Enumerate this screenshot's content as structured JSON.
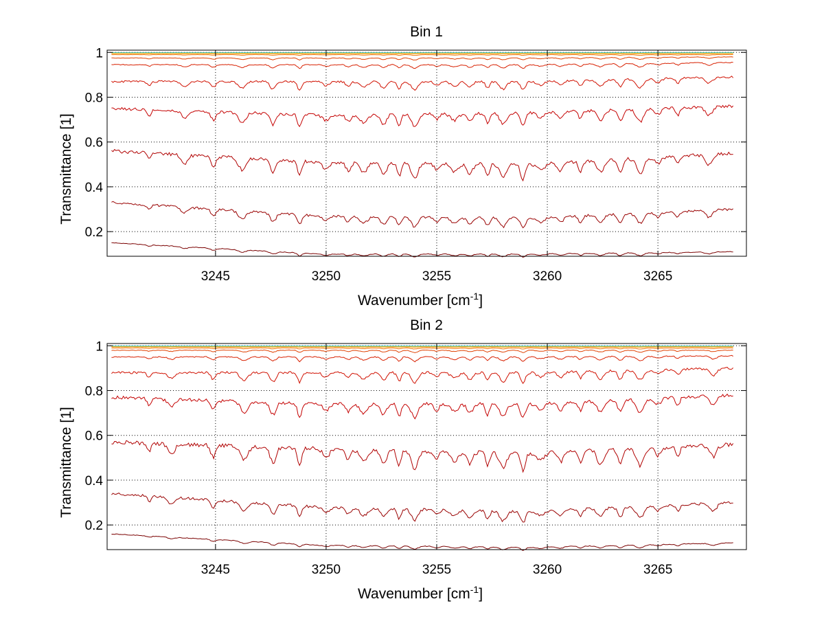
{
  "chart_data": [
    {
      "type": "line",
      "title": "Bin 1",
      "xlabel": "Wavenumber [cm",
      "xlabel_sup": "-1",
      "xlabel_end": "]",
      "ylabel": "Transmittance [1]",
      "xlim": [
        3240.1,
        3269.0
      ],
      "ylim": [
        0.09,
        1.01
      ],
      "xticks": [
        "3245",
        "3250",
        "3255",
        "3260",
        "3265"
      ],
      "yticks": [
        "0.2",
        "0.4",
        "0.6",
        "0.8",
        "1"
      ],
      "grid": true,
      "x_range": [
        3240.3,
        3268.4
      ],
      "series_colors": [
        "#7a0000",
        "#990000",
        "#b00000",
        "#c40000",
        "#d01000",
        "#d82000",
        "#e04000",
        "#ee7000",
        "#ff9900",
        "#ffcc00",
        "#30c0c0"
      ],
      "series": [
        {
          "baseline": [
            0.15,
            0.1,
            0.1,
            0.11
          ],
          "depth": 0.012
        },
        {
          "baseline": [
            0.33,
            0.27,
            0.26,
            0.3
          ],
          "depth": 0.04
        },
        {
          "baseline": [
            0.56,
            0.51,
            0.5,
            0.55
          ],
          "depth": 0.06
        },
        {
          "baseline": [
            0.75,
            0.72,
            0.73,
            0.76
          ],
          "depth": 0.05
        },
        {
          "baseline": [
            0.87,
            0.87,
            0.87,
            0.89
          ],
          "depth": 0.035
        },
        {
          "baseline": [
            0.945,
            0.945,
            0.945,
            0.955
          ],
          "depth": 0.015
        },
        {
          "baseline": [
            0.975,
            0.975,
            0.975,
            0.98
          ],
          "depth": 0.008
        },
        {
          "baseline": [
            0.99,
            0.99,
            0.99,
            0.99
          ],
          "depth": 0.003
        },
        {
          "baseline": [
            0.995,
            0.995,
            0.995,
            0.995
          ],
          "depth": 0.001
        },
        {
          "baseline": [
            0.998,
            0.998,
            0.998,
            0.998
          ],
          "depth": 0.0005
        },
        {
          "baseline": [
            0.999,
            0.999,
            0.999,
            0.999
          ],
          "depth": 0.0002
        }
      ],
      "absorption_lines": [
        3242.0,
        3243.6,
        3244.9,
        3246.2,
        3247.6,
        3248.8,
        3250.0,
        3251.0,
        3251.7,
        3252.6,
        3253.3,
        3254.0,
        3255.0,
        3255.8,
        3256.5,
        3257.3,
        3258.0,
        3258.9,
        3259.7,
        3260.6,
        3261.5,
        3262.4,
        3263.3,
        3264.2,
        3265.0,
        3265.9,
        3267.3
      ]
    },
    {
      "type": "line",
      "title": "Bin 2",
      "xlabel": "Wavenumber [cm",
      "xlabel_sup": "-1",
      "xlabel_end": "]",
      "ylabel": "Transmittance [1]",
      "xlim": [
        3240.1,
        3269.0
      ],
      "ylim": [
        0.09,
        1.01
      ],
      "xticks": [
        "3245",
        "3250",
        "3255",
        "3260",
        "3265"
      ],
      "yticks": [
        "0.2",
        "0.4",
        "0.6",
        "0.8",
        "1"
      ],
      "grid": true,
      "x_range": [
        3240.3,
        3268.4
      ],
      "series_colors": [
        "#7a0000",
        "#990000",
        "#b00000",
        "#c40000",
        "#d01000",
        "#d82000",
        "#e04000",
        "#ee7000",
        "#ff9900",
        "#ffcc00",
        "#30c0c0"
      ],
      "series": [
        {
          "baseline": [
            0.16,
            0.11,
            0.1,
            0.12
          ],
          "depth": 0.012
        },
        {
          "baseline": [
            0.34,
            0.28,
            0.26,
            0.3
          ],
          "depth": 0.045
        },
        {
          "baseline": [
            0.57,
            0.54,
            0.52,
            0.56
          ],
          "depth": 0.07
        },
        {
          "baseline": [
            0.77,
            0.74,
            0.74,
            0.78
          ],
          "depth": 0.055
        },
        {
          "baseline": [
            0.88,
            0.88,
            0.88,
            0.9
          ],
          "depth": 0.04
        },
        {
          "baseline": [
            0.95,
            0.95,
            0.95,
            0.955
          ],
          "depth": 0.018
        },
        {
          "baseline": [
            0.98,
            0.98,
            0.98,
            0.98
          ],
          "depth": 0.009
        },
        {
          "baseline": [
            0.99,
            0.99,
            0.99,
            0.99
          ],
          "depth": 0.004
        },
        {
          "baseline": [
            0.995,
            0.995,
            0.995,
            0.995
          ],
          "depth": 0.0015
        },
        {
          "baseline": [
            0.998,
            0.998,
            0.998,
            0.998
          ],
          "depth": 0.0006
        },
        {
          "baseline": [
            0.999,
            0.999,
            0.999,
            0.999
          ],
          "depth": 0.0002
        }
      ],
      "absorption_lines": [
        3242.0,
        3243.0,
        3244.9,
        3246.3,
        3247.6,
        3248.8,
        3250.0,
        3251.0,
        3251.7,
        3252.6,
        3253.3,
        3254.0,
        3255.0,
        3255.8,
        3256.5,
        3257.3,
        3258.0,
        3258.9,
        3259.7,
        3260.6,
        3261.5,
        3262.4,
        3263.3,
        3264.2,
        3265.0,
        3265.9,
        3267.5
      ]
    }
  ]
}
